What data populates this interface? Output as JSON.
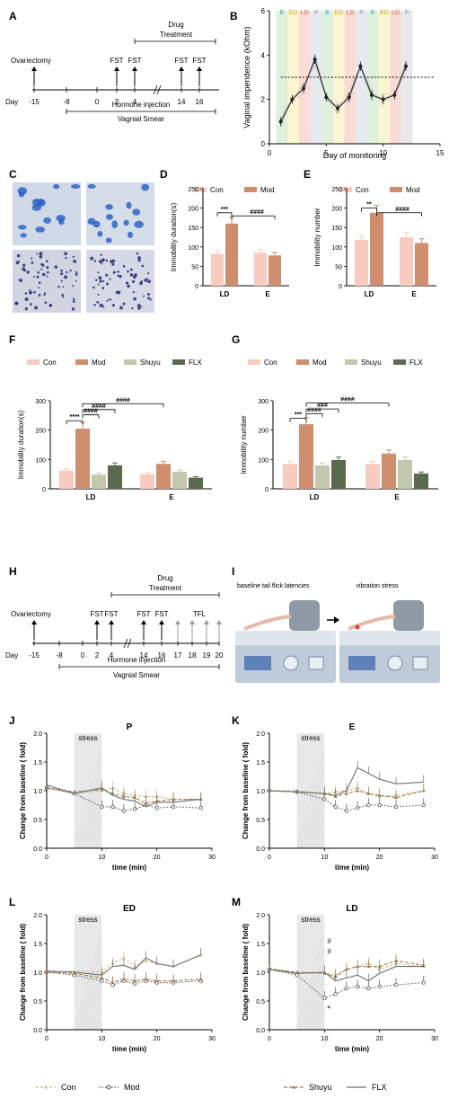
{
  "panel_letters": {
    "A": "A",
    "B": "B",
    "C": "C",
    "D": "D",
    "E": "E",
    "F": "F",
    "G": "G",
    "H": "H",
    "I": "I",
    "J": "J",
    "K": "K",
    "L": "L",
    "M": "M"
  },
  "colors": {
    "con": "#f7cbbf",
    "mod": "#cf8e6d",
    "shuyu": "#c3c7ae",
    "flx": "#5a6a4f",
    "line_con": "#c9be88",
    "line_mod": "#555555",
    "line_shuyu": "#a37a50",
    "line_flx": "#6e6e6e"
  },
  "timeline_a": {
    "drug_treatment": "Drug\nTreatment",
    "ovariectomy": "Ovariectomy",
    "fst": "FST",
    "day_label": "Day",
    "days": [
      "-15",
      "-8",
      "0",
      "2",
      "4",
      "14",
      "16"
    ],
    "hormone": "Hormone injection",
    "smear": "Vagnial Smear"
  },
  "timeline_h": {
    "drug_treatment": "Drug\nTreatment",
    "ovariectomy": "Ovariectomy",
    "fst": "FST",
    "tfl": "TFL",
    "day_label": "Day",
    "days": [
      "-15",
      "-8",
      "0",
      "2",
      "4",
      "14",
      "16",
      "17",
      "18",
      "19",
      "20"
    ],
    "hormone": "Hormone injection",
    "smear": "Vagnial Smear"
  },
  "panel_i": {
    "baseline": "baseline tail flick latencies",
    "stress": "vibration stress"
  },
  "chart_data": [
    {
      "panel": "B",
      "type": "line",
      "xlabel": "Day of monitoring",
      "ylabel": "Vaginal impendence (kOhm)",
      "xlim": [
        0,
        15
      ],
      "ylim": [
        0,
        6
      ],
      "xticks": [
        "0",
        "5",
        "10",
        "15"
      ],
      "yticks": [
        "0",
        "2",
        "4",
        "6"
      ],
      "phase_labels": [
        "E",
        "ED",
        "LD",
        "P",
        "E",
        "ED",
        "LD",
        "P",
        "E",
        "ED",
        "LD",
        "P"
      ],
      "threshold": 3,
      "x": [
        1,
        2,
        3,
        4,
        5,
        6,
        7,
        8,
        9,
        10,
        11,
        12
      ],
      "y": [
        1.0,
        2.0,
        2.5,
        3.8,
        2.1,
        1.6,
        2.1,
        3.5,
        2.2,
        2.0,
        2.2,
        3.5
      ]
    },
    {
      "panel": "D",
      "type": "bar",
      "ylabel": "Immobility duration(s)",
      "ylim": [
        0,
        250
      ],
      "yticks": [
        "0",
        "50",
        "100",
        "150",
        "200",
        "250"
      ],
      "categories": [
        "LD",
        "E"
      ],
      "series": [
        {
          "name": "Con",
          "values": [
            82,
            85
          ]
        },
        {
          "name": "Mod",
          "values": [
            160,
            78
          ]
        }
      ],
      "annotations": [
        "***",
        "####"
      ]
    },
    {
      "panel": "E",
      "type": "bar",
      "ylabel": "Immobility number",
      "ylim": [
        0,
        250
      ],
      "yticks": [
        "0",
        "50",
        "100",
        "150",
        "200",
        "250"
      ],
      "categories": [
        "LD",
        "E"
      ],
      "series": [
        {
          "name": "Con",
          "values": [
            118,
            125
          ]
        },
        {
          "name": "Mod",
          "values": [
            188,
            110
          ]
        }
      ],
      "annotations": [
        "**",
        "####"
      ]
    },
    {
      "panel": "F",
      "type": "bar",
      "ylabel": "Immobility duration(s)",
      "ylim": [
        0,
        300
      ],
      "yticks": [
        "0",
        "100",
        "200",
        "300"
      ],
      "categories": [
        "LD",
        "E"
      ],
      "series": [
        {
          "name": "Con",
          "values": [
            62,
            50
          ]
        },
        {
          "name": "Mod",
          "values": [
            205,
            85
          ]
        },
        {
          "name": "Shuyu",
          "values": [
            48,
            58
          ]
        },
        {
          "name": "FLX",
          "values": [
            80,
            38
          ]
        }
      ],
      "annotations": [
        "****",
        "####",
        "####",
        "####"
      ]
    },
    {
      "panel": "G",
      "type": "bar",
      "ylabel": "Immobility number",
      "ylim": [
        0,
        300
      ],
      "yticks": [
        "0",
        "100",
        "200",
        "300"
      ],
      "categories": [
        "LD",
        "E"
      ],
      "series": [
        {
          "name": "Con",
          "values": [
            85,
            85
          ]
        },
        {
          "name": "Mod",
          "values": [
            220,
            120
          ]
        },
        {
          "name": "Shuyu",
          "values": [
            80,
            98
          ]
        },
        {
          "name": "FLX",
          "values": [
            98,
            52
          ]
        }
      ],
      "annotations": [
        "***",
        "####",
        "###",
        "####"
      ]
    },
    {
      "panel": "J",
      "type": "line",
      "title": "P",
      "stress_label": "stress",
      "xlabel": "time (min)",
      "ylabel": "Change from baseline ( fold)",
      "xlim": [
        0,
        30
      ],
      "ylim": [
        0,
        2.0
      ],
      "xticks": [
        "0",
        "10",
        "20",
        "30"
      ],
      "yticks": [
        "0.0",
        "0.5",
        "1.0",
        "1.5",
        "2.0"
      ],
      "x": [
        0,
        5,
        10,
        12,
        14,
        16,
        18,
        20,
        23,
        28
      ],
      "series": [
        {
          "name": "Con",
          "values": [
            1.05,
            0.95,
            1.0,
            1.05,
            0.95,
            0.92,
            0.9,
            0.9,
            0.85,
            0.85
          ]
        },
        {
          "name": "Mod",
          "values": [
            1.05,
            0.95,
            0.72,
            0.72,
            0.65,
            0.68,
            0.75,
            0.7,
            0.72,
            0.7
          ]
        },
        {
          "name": "Shuyu",
          "values": [
            1.05,
            0.98,
            1.02,
            0.95,
            0.9,
            0.88,
            0.78,
            0.82,
            0.85,
            0.85
          ]
        },
        {
          "name": "FLX",
          "values": [
            1.1,
            0.95,
            1.05,
            0.92,
            0.85,
            0.82,
            0.72,
            0.8,
            0.8,
            0.85
          ]
        }
      ]
    },
    {
      "panel": "K",
      "type": "line",
      "title": "E",
      "stress_label": "stress",
      "xlabel": "time (min)",
      "ylabel": "Change from baseline ( fold)",
      "xlim": [
        0,
        30
      ],
      "ylim": [
        0,
        2.0
      ],
      "xticks": [
        "0",
        "10",
        "20",
        "30"
      ],
      "yticks": [
        "0.0",
        "0.5",
        "1.0",
        "1.5",
        "2.0"
      ],
      "x": [
        0,
        5,
        10,
        12,
        14,
        16,
        18,
        20,
        23,
        28
      ],
      "series": [
        {
          "name": "Con",
          "values": [
            1.0,
            1.0,
            0.95,
            0.98,
            1.0,
            1.05,
            0.95,
            0.9,
            0.92,
            1.0
          ]
        },
        {
          "name": "Mod",
          "values": [
            1.0,
            0.98,
            0.85,
            0.72,
            0.65,
            0.7,
            0.75,
            0.75,
            0.72,
            0.75
          ]
        },
        {
          "name": "Shuyu",
          "values": [
            1.0,
            0.98,
            0.95,
            0.9,
            0.95,
            1.0,
            0.95,
            0.92,
            0.88,
            1.0
          ]
        },
        {
          "name": "FLX",
          "values": [
            1.0,
            0.98,
            0.95,
            0.92,
            1.0,
            1.4,
            1.3,
            1.2,
            1.12,
            1.15
          ]
        }
      ]
    },
    {
      "panel": "L",
      "type": "line",
      "title": "ED",
      "stress_label": "stress",
      "xlabel": "time (min)",
      "ylabel": "Change from baseline ( fold)",
      "xlim": [
        0,
        30
      ],
      "ylim": [
        0,
        2.0
      ],
      "xticks": [
        "0",
        "10",
        "20",
        "30"
      ],
      "yticks": [
        "0.0",
        "0.5",
        "1.0",
        "1.5",
        "2.0"
      ],
      "x": [
        0,
        5,
        10,
        12,
        14,
        16,
        18,
        20,
        23,
        28
      ],
      "series": [
        {
          "name": "Con",
          "values": [
            1.0,
            1.02,
            1.0,
            1.15,
            1.25,
            1.1,
            1.2,
            1.15,
            1.1,
            1.3
          ]
        },
        {
          "name": "Mod",
          "values": [
            1.0,
            0.95,
            0.85,
            0.78,
            0.85,
            0.8,
            0.85,
            0.82,
            0.82,
            0.85
          ]
        },
        {
          "name": "Shuyu",
          "values": [
            1.0,
            0.98,
            0.9,
            0.82,
            0.88,
            0.85,
            0.88,
            0.85,
            0.85,
            0.88
          ]
        },
        {
          "name": "FLX",
          "values": [
            1.02,
            1.0,
            0.95,
            1.1,
            1.12,
            1.05,
            1.25,
            1.15,
            1.1,
            1.3
          ]
        }
      ]
    },
    {
      "panel": "M",
      "type": "line",
      "title": "LD",
      "stress_label": "stress",
      "xlabel": "time (min)",
      "ylabel": "Change from baseline ( fold)",
      "xlim": [
        0,
        30
      ],
      "ylim": [
        0,
        2.0
      ],
      "xticks": [
        "0",
        "10",
        "20",
        "30"
      ],
      "yticks": [
        "0.0",
        "0.5",
        "1.0",
        "1.5",
        "2.0"
      ],
      "annotations": [
        "#",
        "#",
        "*"
      ],
      "x": [
        0,
        5,
        10,
        12,
        14,
        16,
        18,
        20,
        23,
        28
      ],
      "series": [
        {
          "name": "Con",
          "values": [
            1.08,
            0.98,
            1.0,
            0.95,
            1.05,
            1.1,
            1.15,
            1.05,
            1.15,
            1.1
          ]
        },
        {
          "name": "Mod",
          "values": [
            1.05,
            0.95,
            0.55,
            0.62,
            0.72,
            0.75,
            0.72,
            0.75,
            0.78,
            0.82
          ]
        },
        {
          "name": "Shuyu",
          "values": [
            1.05,
            1.0,
            0.98,
            0.92,
            1.05,
            1.1,
            1.1,
            1.1,
            1.2,
            1.12
          ]
        },
        {
          "name": "FLX",
          "values": [
            1.05,
            0.98,
            1.0,
            0.85,
            0.9,
            0.95,
            0.85,
            0.98,
            1.1,
            1.1
          ]
        }
      ]
    }
  ],
  "legend_bottom": [
    "Con",
    "Mod",
    "Shuyu",
    "FLX"
  ]
}
